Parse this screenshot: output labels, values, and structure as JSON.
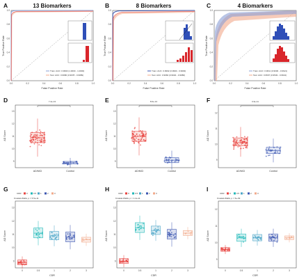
{
  "figure": {
    "panels_top": [
      {
        "letter": "A",
        "title": "13 Biomarkers",
        "legend": [
          "Train: AUC: 0.9990 (1.0000 - 1.0000)",
          "Test: AUC: 0.9980 (0.9978 - 0.9989)"
        ]
      },
      {
        "letter": "B",
        "title": "8 Biomarkers",
        "legend": [
          "Train: AUC: 0.9992 (0.9990 - 0.9993)",
          "Test: AUC: 0.9984 (0.9940 - 0.9980)"
        ]
      },
      {
        "letter": "C",
        "title": "4 Biomarkers",
        "legend": [
          "Train: AUC: 0.9611 (0.9600 - 0.9621)",
          "Test: AUC: 0.9597 (0.9549 - 0.9644)"
        ]
      }
    ],
    "roc_xlabel": "False Positive Rate",
    "roc_ylabel": "True Positive Rate",
    "roc_ticks": [
      "0.0",
      "0.2",
      "0.4",
      "0.6",
      "0.8",
      "1.0"
    ],
    "panels_mid": [
      {
        "letter": "D",
        "pvalue": "7.4e-13"
      },
      {
        "letter": "E",
        "pvalue": "8.6e-13"
      },
      {
        "letter": "F",
        "pvalue": "3.3e-11"
      }
    ],
    "mid_categories": [
      "AD/MCI",
      "Control"
    ],
    "ad_score_label": "AD Score",
    "panels_bot": [
      {
        "letter": "G",
        "kw": "Kruskal-Wallis, p = 5.5e-11"
      },
      {
        "letter": "H",
        "kw": "Kruskal-Wallis, p = 1.2e-11"
      },
      {
        "letter": "I",
        "kw": "Kruskal-Wallis, p = 5e-09"
      }
    ],
    "cdr_label": "CDR",
    "cdr_categories": [
      "0",
      "0.5",
      "1",
      "2",
      "3"
    ],
    "colors": {
      "ad": "#e8433f",
      "control": "#3b55b0",
      "train_roc": "#8a9fd6",
      "test_roc": "#f2a98a",
      "inset_blue": "#2f4fb8",
      "inset_red": "#d9262b",
      "cdr": [
        "#e8433f",
        "#1fb8b8",
        "#4aa4c7",
        "#3b55b0",
        "#f2a98a"
      ]
    }
  },
  "chart_data": [
    {
      "type": "line",
      "title": "13 Biomarkers",
      "xlabel": "False Positive Rate",
      "ylabel": "True Positive Rate",
      "xlim": [
        0,
        1
      ],
      "ylim": [
        0,
        1
      ],
      "series": [
        {
          "name": "Train: AUC: 0.9990 (1.0000 - 1.0000)"
        },
        {
          "name": "Test: AUC: 0.9980 (0.9978 - 0.9989)"
        }
      ]
    },
    {
      "type": "line",
      "title": "8 Biomarkers",
      "xlabel": "False Positive Rate",
      "ylabel": "True Positive Rate",
      "xlim": [
        0,
        1
      ],
      "ylim": [
        0,
        1
      ],
      "series": [
        {
          "name": "Train: AUC: 0.9992 (0.9990 - 0.9993)"
        },
        {
          "name": "Test: AUC: 0.9984 (0.9940 - 0.9980)"
        }
      ]
    },
    {
      "type": "line",
      "title": "4 Biomarkers",
      "xlabel": "False Positive Rate",
      "ylabel": "True Positive Rate",
      "xlim": [
        0,
        1
      ],
      "ylim": [
        0,
        1
      ],
      "series": [
        {
          "name": "Train: AUC: 0.9611 (0.9600 - 0.9621)"
        },
        {
          "name": "Test: AUC: 0.9597 (0.9549 - 0.9644)"
        }
      ]
    },
    {
      "type": "box",
      "categories": [
        "AD/MCI",
        "Control"
      ],
      "ylabel": "AD Score",
      "ylim": [
        8.5,
        13.5
      ],
      "medians": [
        10.9,
        8.9
      ],
      "q1": [
        10.5,
        8.8
      ],
      "q3": [
        11.3,
        9.0
      ]
    },
    {
      "type": "box",
      "categories": [
        "AD/MCI",
        "Control"
      ],
      "ylabel": "AD Score",
      "ylim": [
        8.5,
        13.5
      ],
      "medians": [
        11.0,
        9.1
      ],
      "q1": [
        10.6,
        8.9
      ],
      "q3": [
        11.4,
        9.3
      ]
    },
    {
      "type": "box",
      "categories": [
        "AD/MCI",
        "Control"
      ],
      "ylabel": "AD Score",
      "ylim": [
        8.5,
        12.5
      ],
      "medians": [
        10.1,
        9.6
      ],
      "q1": [
        9.9,
        9.4
      ],
      "q3": [
        10.4,
        9.8
      ]
    },
    {
      "type": "box",
      "categories": [
        "0",
        "0.5",
        "1",
        "2",
        "3"
      ],
      "xlabel": "CDR",
      "ylabel": "AD Score",
      "ylim": [
        8.5,
        13.5
      ],
      "medians": [
        8.9,
        11.1,
        10.9,
        10.8,
        10.6
      ]
    },
    {
      "type": "box",
      "categories": [
        "0",
        "0.5",
        "1",
        "2",
        "3"
      ],
      "xlabel": "CDR",
      "ylabel": "AD Score",
      "ylim": [
        8.5,
        13.5
      ],
      "medians": [
        9.0,
        11.5,
        11.3,
        11.0,
        11.1
      ]
    },
    {
      "type": "box",
      "categories": [
        "0",
        "0.5",
        "1",
        "2",
        "3"
      ],
      "xlabel": "CDR",
      "ylabel": "AD Score",
      "ylim": [
        8.5,
        12.5
      ],
      "medians": [
        9.6,
        10.3,
        10.3,
        10.3,
        10.3
      ]
    }
  ]
}
